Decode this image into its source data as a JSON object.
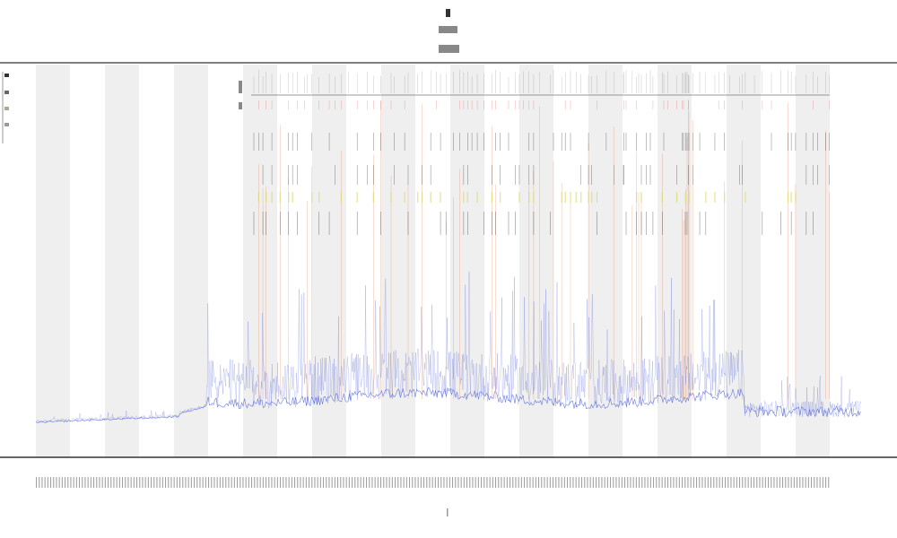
{
  "chart_data": {
    "type": "line",
    "title": "",
    "xlabel": "",
    "ylabel": "",
    "grid": false,
    "shaded_bands": true,
    "series": [
      {
        "role": "signal",
        "color": "#4a5bd6"
      },
      {
        "role": "events",
        "color": "#e2703a"
      },
      {
        "role": "event-markers",
        "color": "#222222"
      },
      {
        "role": "highlight-markers",
        "color": "#d8d86a"
      }
    ],
    "colors": {
      "signal": "#4a5bd6",
      "events": "#e2703a",
      "markers": "#222222",
      "highlight": "#d8d86a",
      "band": "#efefef",
      "axis": "#555555"
    }
  }
}
